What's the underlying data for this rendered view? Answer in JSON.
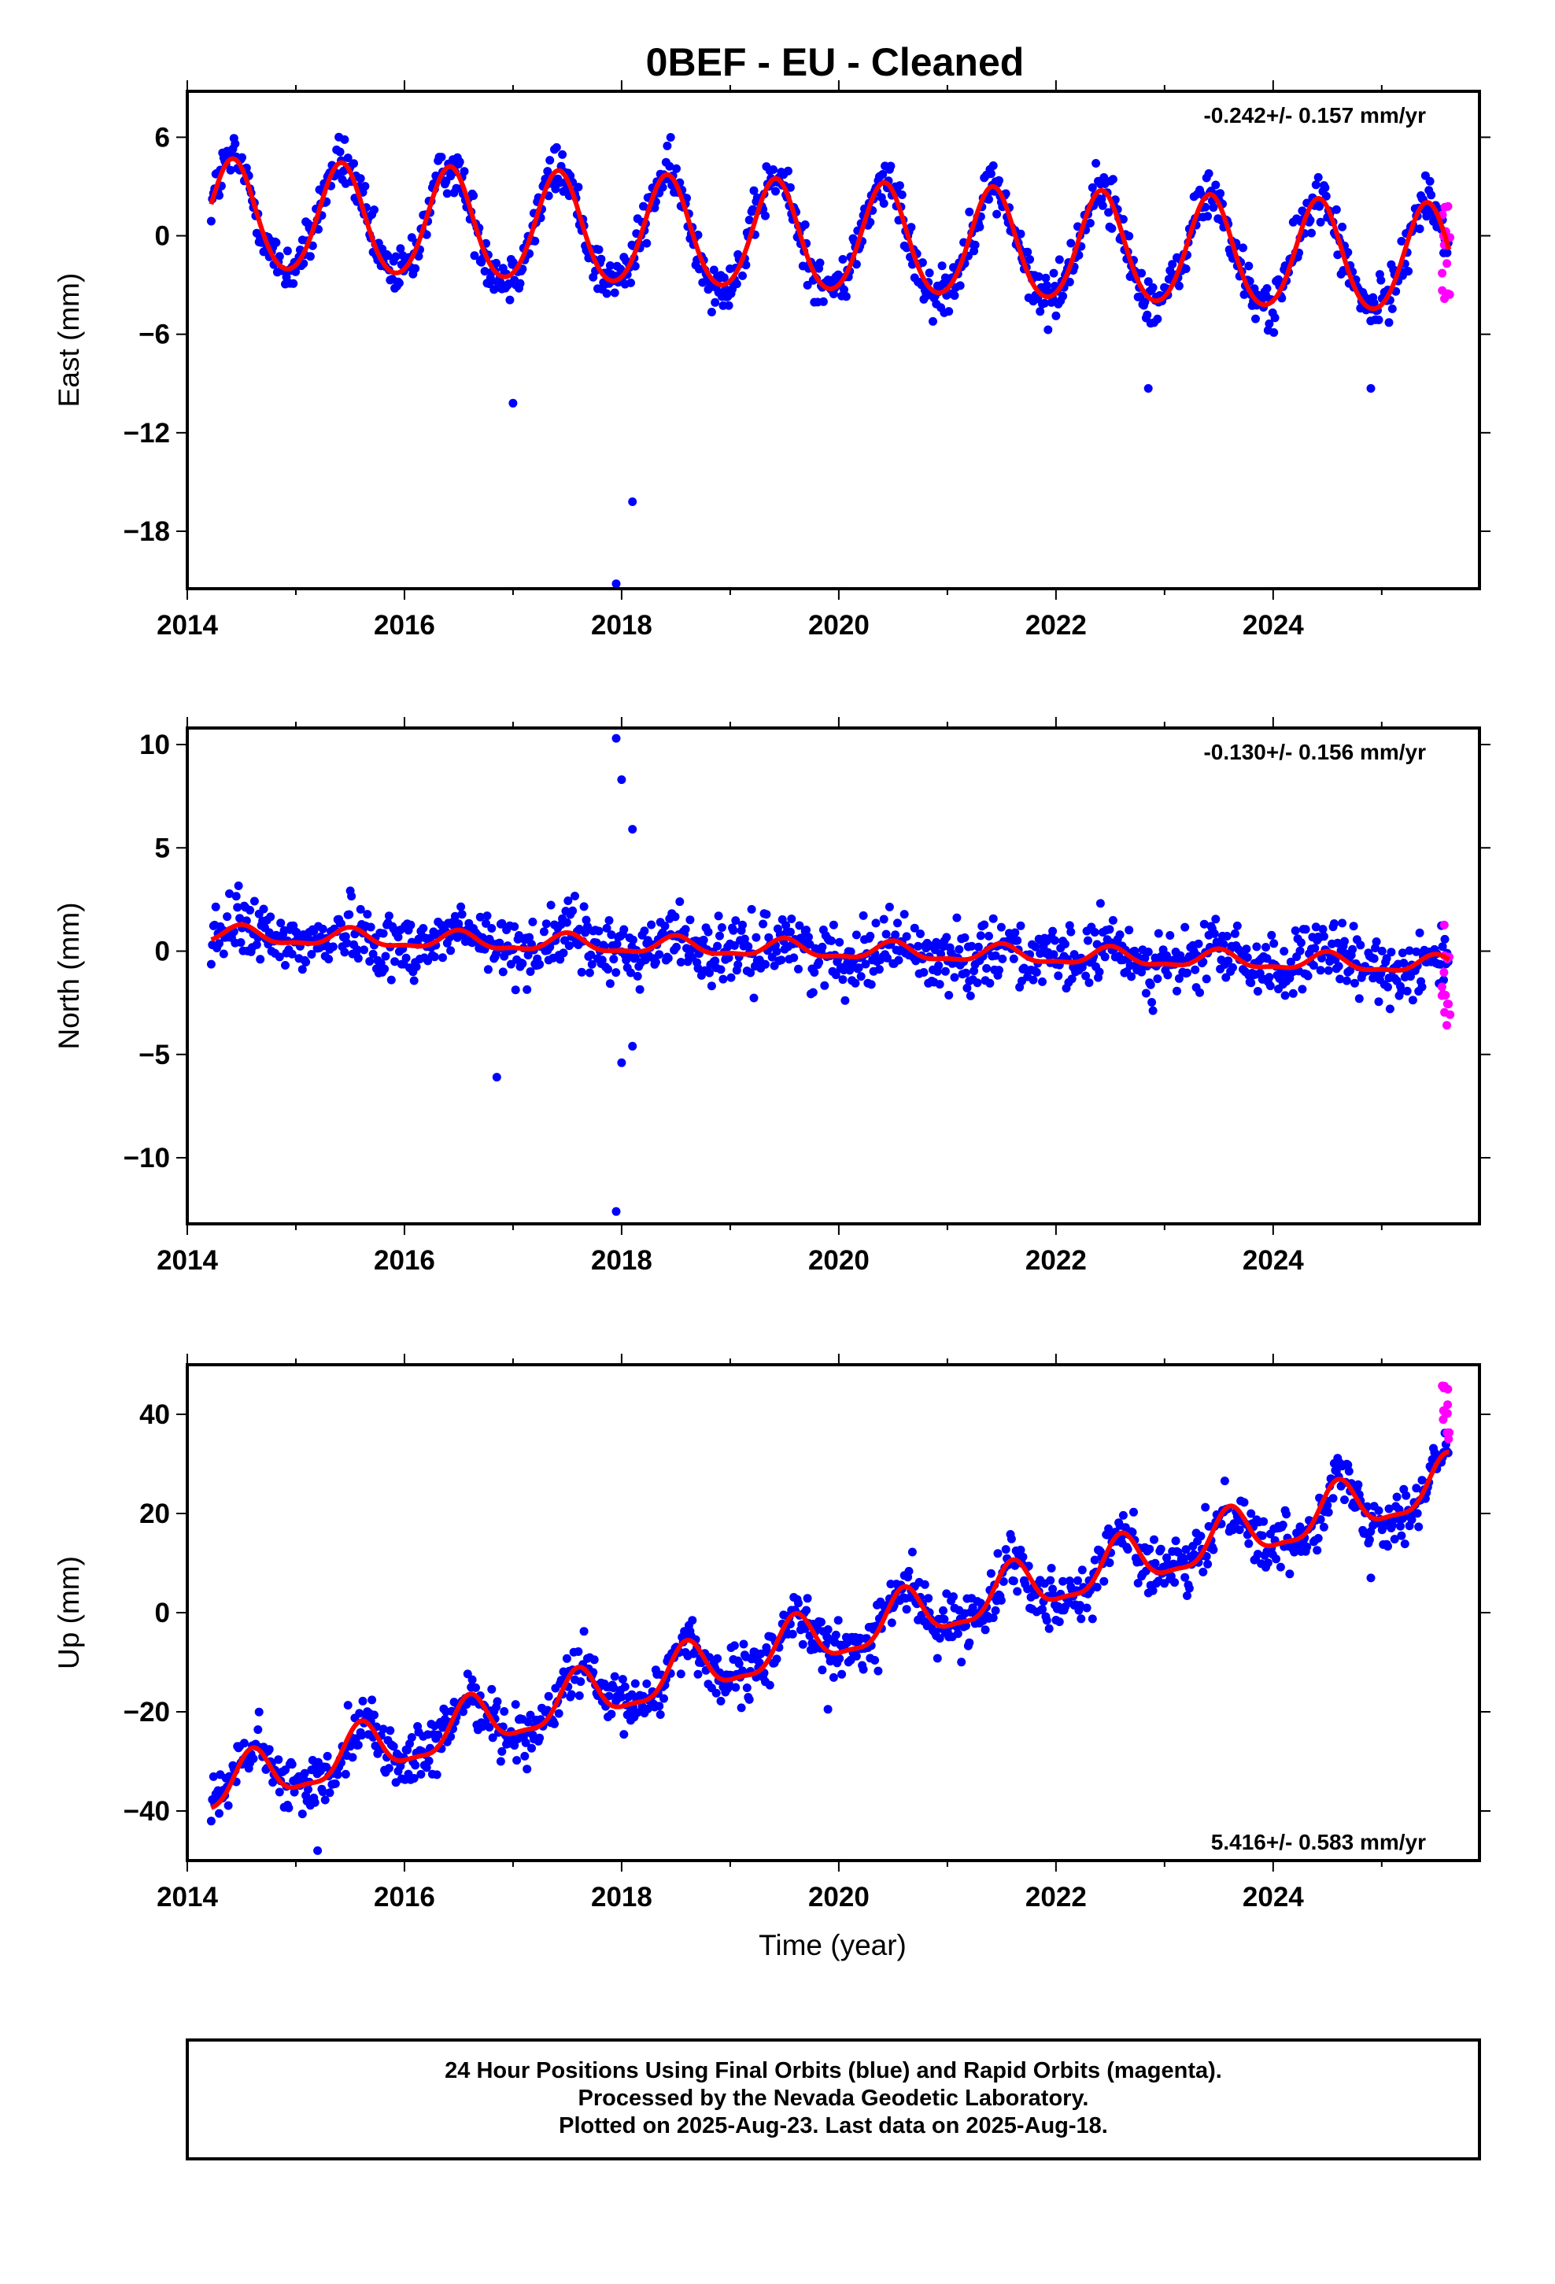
{
  "title": "0BEF  - EU - Cleaned",
  "xlabel": "Time (year)",
  "footer": [
    "24 Hour Positions Using Final Orbits (blue) and Rapid Orbits (magenta).",
    "Processed by the Nevada Geodetic Laboratory.",
    "Plotted on 2025-Aug-23. Last data on 2025-Aug-18."
  ],
  "colors": {
    "final": "#0000ff",
    "rapid": "#ff00ff",
    "model": "#ff0000",
    "frame": "#000000"
  },
  "chart_data": [
    {
      "type": "scatter",
      "ylabel": "East (mm)",
      "rate_label": "-0.242+/- 0.157 mm/yr",
      "xlim": [
        2014,
        2025.9
      ],
      "ylim": [
        -21.5,
        8.8
      ],
      "xticks": [
        2014,
        2016,
        2018,
        2020,
        2022,
        2024
      ],
      "yticks": [
        6,
        0,
        -6,
        -12,
        -18
      ],
      "ytick_labels": [
        "6",
        "0",
        "−6",
        "−12",
        "−18"
      ],
      "grid": false,
      "model": {
        "start": 2014.22,
        "end": 2025.62,
        "offset": 1.2,
        "trend": -0.242,
        "annual_amp": 3.3,
        "annual_peak": 2014.42,
        "semiannual_amp": 0.3,
        "scatter_sd": 1.1
      },
      "outliers": [
        [
          2017.0,
          -10.2
        ],
        [
          2018.1,
          -16.2
        ],
        [
          2017.95,
          -21.2
        ],
        [
          2022.85,
          -9.3
        ],
        [
          2024.9,
          -9.3
        ]
      ],
      "rapid_range": [
        -4.5,
        2.0
      ]
    },
    {
      "type": "scatter",
      "ylabel": "North (mm)",
      "rate_label": "-0.130+/- 0.156 mm/yr",
      "xlim": [
        2014,
        2025.9
      ],
      "ylim": [
        -13.2,
        10.8
      ],
      "xticks": [
        2014,
        2016,
        2018,
        2020,
        2022,
        2024
      ],
      "yticks": [
        10,
        5,
        0,
        -5,
        -10
      ],
      "ytick_labels": [
        "10",
        "5",
        "0",
        "−5",
        "−10"
      ],
      "grid": false,
      "model": {
        "start": 2014.22,
        "end": 2025.62,
        "offset": 0.8,
        "trend": -0.13,
        "annual_amp": 0.4,
        "annual_peak": 2014.5,
        "semiannual_amp": 0.15,
        "scatter_sd": 1.1
      },
      "outliers": [
        [
          2017.95,
          10.3
        ],
        [
          2018.0,
          8.3
        ],
        [
          2018.1,
          5.9
        ],
        [
          2016.85,
          -6.1
        ],
        [
          2017.95,
          -12.6
        ],
        [
          2018.0,
          -5.4
        ],
        [
          2018.1,
          -4.6
        ]
      ],
      "rapid_range": [
        -3.6,
        1.4
      ]
    },
    {
      "type": "scatter",
      "ylabel": "Up (mm)",
      "rate_label": "5.416+/- 0.583 mm/yr",
      "xlim": [
        2014,
        2025.9
      ],
      "ylim": [
        -50,
        50
      ],
      "xticks": [
        2014,
        2016,
        2018,
        2020,
        2022,
        2024
      ],
      "yticks": [
        40,
        20,
        0,
        -20,
        -40
      ],
      "ytick_labels": [
        "40",
        "20",
        "0",
        "−20",
        "−40"
      ],
      "grid": false,
      "model": {
        "start": 2014.22,
        "end": 2025.62,
        "offset": -37,
        "trend": 5.416,
        "annual_amp": 5.0,
        "annual_peak": 2014.6,
        "semiannual_amp": 1.5,
        "scatter_sd": 4.0
      },
      "outliers": [
        [
          2015.2,
          -48
        ],
        [
          2019.9,
          -19.5
        ],
        [
          2024.9,
          7
        ]
      ],
      "rapid_range": [
        33,
        47
      ]
    }
  ]
}
